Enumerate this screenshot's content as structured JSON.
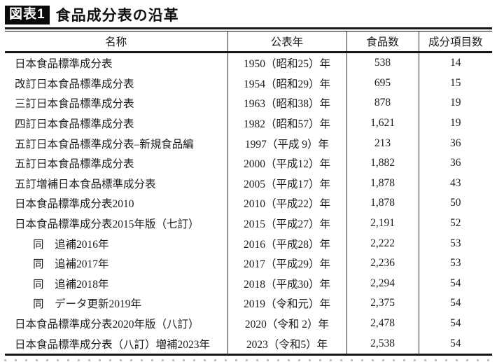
{
  "title": {
    "badge": "図表1",
    "text": "食品成分表の沿革"
  },
  "table": {
    "columns": [
      {
        "label": "名称"
      },
      {
        "label": "公表年"
      },
      {
        "label": "食品数"
      },
      {
        "label": "成分項目数"
      }
    ],
    "rows": [
      {
        "name": "日本食品標準成分表",
        "year": "1950（昭和25）年",
        "foods": "538",
        "items": "14",
        "indent": false
      },
      {
        "name": "改訂日本食品標準成分表",
        "year": "1954（昭和29）年",
        "foods": "695",
        "items": "15",
        "indent": false
      },
      {
        "name": "三訂日本食品標準成分表",
        "year": "1963（昭和38）年",
        "foods": "878",
        "items": "19",
        "indent": false
      },
      {
        "name": "四訂日本食品標準成分表",
        "year": "1982（昭和57）年",
        "foods": "1,621",
        "items": "19",
        "indent": false
      },
      {
        "name": "五訂日本食品標準成分表–新規食品編",
        "year": "1997（平成 9）年",
        "foods": "213",
        "items": "36",
        "indent": false
      },
      {
        "name": "五訂日本食品標準成分表",
        "year": "2000（平成12）年",
        "foods": "1,882",
        "items": "36",
        "indent": false
      },
      {
        "name": "五訂増補日本食品標準成分表",
        "year": "2005（平成17）年",
        "foods": "1,878",
        "items": "43",
        "indent": false
      },
      {
        "name": "日本食品標準成分表2010",
        "year": "2010（平成22）年",
        "foods": "1,878",
        "items": "50",
        "indent": false
      },
      {
        "name": "日本食品標準成分表2015年版（七訂）",
        "year": "2015（平成27）年",
        "foods": "2,191",
        "items": "52",
        "indent": false
      },
      {
        "name": "同　追補2016年",
        "year": "2016（平成28）年",
        "foods": "2,222",
        "items": "53",
        "indent": true
      },
      {
        "name": "同　追補2017年",
        "year": "2017（平成29）年",
        "foods": "2,236",
        "items": "53",
        "indent": true
      },
      {
        "name": "同　追補2018年",
        "year": "2018（平成30）年",
        "foods": "2,294",
        "items": "54",
        "indent": true
      },
      {
        "name": "同　データ更新2019年",
        "year": "2019（令和元）年",
        "foods": "2,375",
        "items": "54",
        "indent": true
      },
      {
        "name": "日本食品標準成分表2020年版（八訂）",
        "year": "2020（令和 2）年",
        "foods": "2,478",
        "items": "54",
        "indent": false
      },
      {
        "name": "日本食品標準成分表（八訂）増補2023年",
        "year": "2023（令和5）年",
        "foods": "2,538",
        "items": "54",
        "indent": false
      }
    ]
  },
  "colors": {
    "badge_bg": "#0a0a0a",
    "badge_text": "#ffffff",
    "text": "#1b1b1b",
    "rule": "#161616"
  }
}
